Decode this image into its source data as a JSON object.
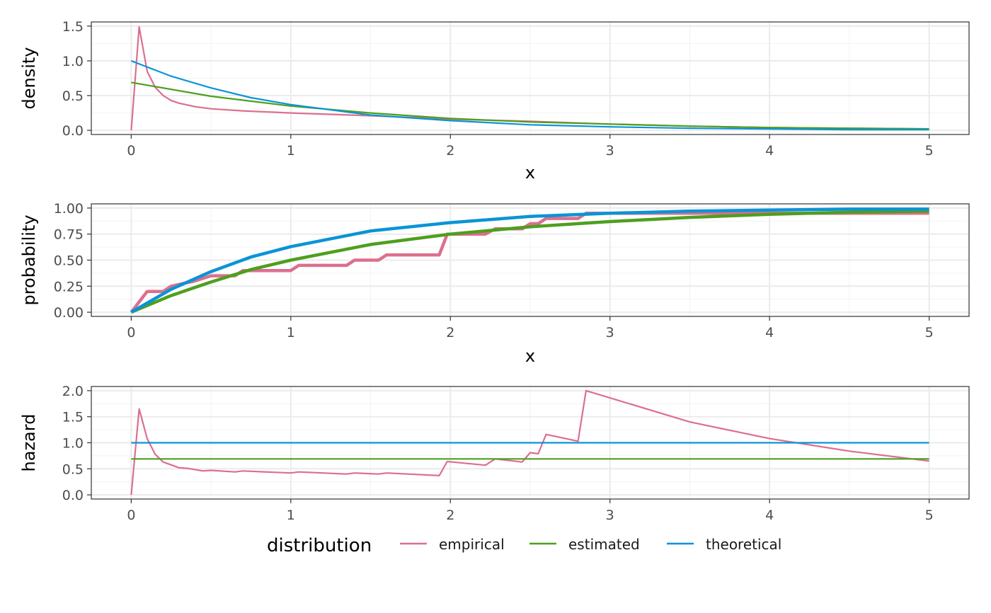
{
  "chart_data": [
    {
      "type": "line",
      "xlabel": "x",
      "ylabel": "density",
      "xlim": [
        -0.25,
        5.25
      ],
      "ylim": [
        -0.06,
        1.56
      ],
      "xticks": [
        0,
        1,
        2,
        3,
        4,
        5
      ],
      "xtick_labels": [
        "0",
        "1",
        "2",
        "3",
        "4",
        "5"
      ],
      "yticks": [
        0,
        0.5,
        1,
        1.5
      ],
      "ytick_labels": [
        "0.0",
        "0.5",
        "1.0",
        "1.5"
      ],
      "grid": true,
      "series": [
        {
          "name": "empirical",
          "x": [
            0,
            0.05,
            0.1,
            0.15,
            0.2,
            0.25,
            0.3,
            0.4,
            0.5,
            0.7,
            1.0,
            1.5,
            2.0,
            2.5,
            3.0,
            3.5,
            4.0,
            4.5,
            5.0
          ],
          "y": [
            0,
            1.49,
            0.85,
            0.62,
            0.5,
            0.43,
            0.39,
            0.34,
            0.31,
            0.28,
            0.25,
            0.21,
            0.16,
            0.13,
            0.09,
            0.06,
            0.04,
            0.03,
            0.02
          ]
        },
        {
          "name": "estimated",
          "x": [
            0,
            0.5,
            1.0,
            1.5,
            2.0,
            2.5,
            3.0,
            3.5,
            4.0,
            4.5,
            5.0
          ],
          "y": [
            0.69,
            0.49,
            0.35,
            0.25,
            0.17,
            0.12,
            0.09,
            0.06,
            0.04,
            0.03,
            0.02
          ]
        },
        {
          "name": "theoretical",
          "x": [
            0,
            0.25,
            0.5,
            0.75,
            1.0,
            1.5,
            2.0,
            2.5,
            3.0,
            3.5,
            4.0,
            4.5,
            5.0
          ],
          "y": [
            1.0,
            0.78,
            0.61,
            0.47,
            0.37,
            0.22,
            0.14,
            0.08,
            0.05,
            0.03,
            0.02,
            0.01,
            0.01
          ]
        }
      ]
    },
    {
      "type": "line",
      "xlabel": "x",
      "ylabel": "probability",
      "xlim": [
        -0.25,
        5.25
      ],
      "ylim": [
        -0.04,
        1.04
      ],
      "xticks": [
        0,
        1,
        2,
        3,
        4,
        5
      ],
      "xtick_labels": [
        "0",
        "1",
        "2",
        "3",
        "4",
        "5"
      ],
      "yticks": [
        0,
        0.25,
        0.5,
        0.75,
        1.0
      ],
      "ytick_labels": [
        "0.00",
        "0.25",
        "0.50",
        "0.75",
        "1.00"
      ],
      "grid": true,
      "series": [
        {
          "name": "empirical",
          "x": [
            0,
            0.1,
            0.2,
            0.25,
            0.4,
            0.5,
            0.65,
            0.7,
            1.0,
            1.05,
            1.35,
            1.4,
            1.55,
            1.6,
            1.93,
            1.98,
            2.22,
            2.28,
            2.45,
            2.5,
            2.55,
            2.6,
            2.8,
            2.85,
            5.0
          ],
          "y": [
            0,
            0.2,
            0.2,
            0.25,
            0.3,
            0.35,
            0.35,
            0.4,
            0.4,
            0.45,
            0.45,
            0.5,
            0.5,
            0.55,
            0.55,
            0.75,
            0.75,
            0.8,
            0.8,
            0.85,
            0.85,
            0.9,
            0.9,
            0.95,
            0.95
          ]
        },
        {
          "name": "estimated",
          "x": [
            0,
            0.25,
            0.5,
            0.75,
            1.0,
            1.5,
            2.0,
            2.5,
            3.0,
            3.5,
            4.0,
            4.5,
            5.0
          ],
          "y": [
            0,
            0.16,
            0.29,
            0.41,
            0.5,
            0.65,
            0.75,
            0.82,
            0.87,
            0.91,
            0.94,
            0.96,
            0.97
          ]
        },
        {
          "name": "theoretical",
          "x": [
            0,
            0.25,
            0.5,
            0.75,
            1.0,
            1.5,
            2.0,
            2.5,
            3.0,
            3.5,
            4.0,
            4.5,
            5.0
          ],
          "y": [
            0,
            0.22,
            0.39,
            0.53,
            0.63,
            0.78,
            0.86,
            0.92,
            0.95,
            0.97,
            0.98,
            0.99,
            0.99
          ]
        }
      ]
    },
    {
      "type": "line",
      "xlabel": "",
      "ylabel": "hazard",
      "xlim": [
        -0.25,
        5.25
      ],
      "ylim": [
        -0.08,
        2.08
      ],
      "xticks": [
        0,
        1,
        2,
        3,
        4,
        5
      ],
      "xtick_labels": [
        "0",
        "1",
        "2",
        "3",
        "4",
        "5"
      ],
      "yticks": [
        0,
        0.5,
        1,
        1.5,
        2
      ],
      "ytick_labels": [
        "0.0",
        "0.5",
        "1.0",
        "1.5",
        "2.0"
      ],
      "grid": true,
      "series": [
        {
          "name": "empirical",
          "x": [
            0,
            0.05,
            0.1,
            0.15,
            0.2,
            0.3,
            0.35,
            0.45,
            0.5,
            0.65,
            0.7,
            1.0,
            1.05,
            1.35,
            1.4,
            1.55,
            1.6,
            1.93,
            1.98,
            2.22,
            2.28,
            2.45,
            2.5,
            2.55,
            2.6,
            2.8,
            2.85,
            3.5,
            4.0,
            4.5,
            5.0
          ],
          "y": [
            0,
            1.65,
            1.08,
            0.78,
            0.63,
            0.52,
            0.51,
            0.46,
            0.47,
            0.44,
            0.46,
            0.42,
            0.44,
            0.4,
            0.42,
            0.4,
            0.42,
            0.37,
            0.64,
            0.57,
            0.69,
            0.63,
            0.81,
            0.79,
            1.16,
            1.03,
            2.0,
            1.4,
            1.08,
            0.84,
            0.65
          ]
        },
        {
          "name": "estimated",
          "x": [
            0,
            5.0
          ],
          "y": [
            0.69,
            0.69
          ]
        },
        {
          "name": "theoretical",
          "x": [
            0,
            5.0
          ],
          "y": [
            1.0,
            1.0
          ]
        }
      ]
    }
  ],
  "legend": {
    "title": "distribution",
    "position": "bottom",
    "items": [
      {
        "label": "empirical",
        "color": "#DC6F8E"
      },
      {
        "label": "estimated",
        "color": "#4E9F1E"
      },
      {
        "label": "theoretical",
        "color": "#0A94D6"
      }
    ]
  },
  "colors": {
    "empirical": "#DC6F8E",
    "estimated": "#4E9F1E",
    "theoretical": "#0A94D6"
  }
}
